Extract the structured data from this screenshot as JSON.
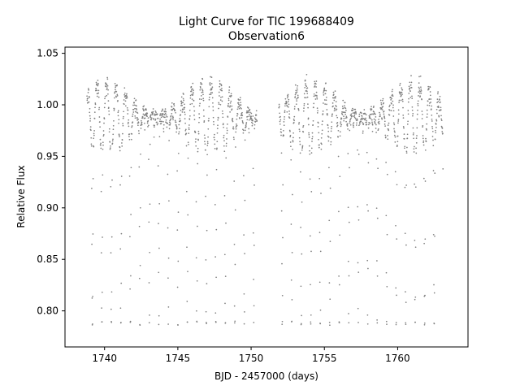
{
  "chart_data": {
    "type": "scatter",
    "title": "Light Curve for TIC 199688409",
    "subtitle": "Observation6",
    "xlabel": "BJD - 2457000 (days)",
    "ylabel": "Relative Flux",
    "xlim": [
      1737.3,
      1764.8
    ],
    "ylim": [
      0.765,
      1.056
    ],
    "xticks": [
      1740,
      1745,
      1750,
      1755,
      1760
    ],
    "yticks": [
      0.8,
      0.85,
      0.9,
      0.95,
      1.0,
      1.05
    ],
    "xtick_labels": [
      "1740",
      "1745",
      "1750",
      "1755",
      "1760"
    ],
    "ytick_labels": [
      "0.80",
      "0.85",
      "0.90",
      "0.95",
      "1.00",
      "1.05"
    ],
    "grid": false,
    "marker_color": "#7f7f7f",
    "segments": [
      {
        "start": 1738.8,
        "end": 1750.4
      },
      {
        "start": 1751.9,
        "end": 1763.1
      }
    ],
    "period_days": 0.6478,
    "first_eclipse": 1739.17,
    "eclipse_min_flux": 0.79,
    "out_of_eclipse_max_flux": 1.04,
    "out_of_eclipse_min_flux": 0.95,
    "baseline_flux": 1.0
  }
}
